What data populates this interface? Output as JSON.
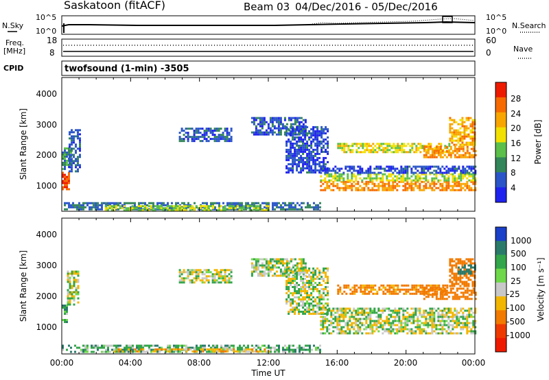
{
  "header": {
    "station": "Saskatoon (fitACF)",
    "beam": "Beam 03",
    "date_range": "04/Dec/2016 - 05/Dec/2016"
  },
  "status_panel": {
    "nsky_label": "N.Sky",
    "nsky_ticks": [
      "10^5",
      "10^0"
    ],
    "nsearch_label": "N.Search",
    "nsearch_ticks": [
      "10^5",
      "10^0"
    ],
    "freq_label_line1": "Freq.",
    "freq_label_line2": "[MHz]",
    "freq_ticks": [
      "18",
      "8"
    ],
    "nave_label": "Nave",
    "nave_ticks": [
      "60",
      "0"
    ],
    "cpid_label": "CPID",
    "cpid_value": "twofsound (1-min) -3505"
  },
  "power_colorbar": {
    "label": "Power [dB]",
    "ticks": [
      "4",
      "8",
      "12",
      "16",
      "20",
      "24",
      "28"
    ],
    "colors": [
      "#1f22ee",
      "#2a55c8",
      "#33855a",
      "#5bbf4a",
      "#f2e000",
      "#f8a500",
      "#f66a00",
      "#ee1a00"
    ]
  },
  "velocity_colorbar": {
    "label": "Velocity [m s⁻¹]",
    "ticks": [
      "1000",
      "500",
      "100",
      "25",
      "-25",
      "-100",
      "-500",
      "-1000"
    ],
    "colors": [
      "#1a3fc8",
      "#2a7a6a",
      "#33a54a",
      "#6fd84a",
      "#c8c8c8",
      "#f2b600",
      "#f27a00",
      "#ee3a00",
      "#ee1a00"
    ]
  },
  "axes": {
    "y_label": "Slant Range [km]",
    "y_ticks": [
      "1000",
      "2000",
      "3000",
      "4000"
    ],
    "x_label": "Time UT",
    "x_ticks": [
      "00:00",
      "04:00",
      "08:00",
      "12:00",
      "16:00",
      "20:00",
      "00:00"
    ]
  },
  "chart_data": [
    {
      "type": "heatmap",
      "variable": "Power",
      "unit": "dB",
      "x_unit": "hours UT",
      "xlim": [
        0,
        24
      ],
      "ylim": [
        200,
        4600
      ],
      "clim": [
        0,
        30
      ],
      "regions": [
        {
          "x": [
            0.0,
            0.4
          ],
          "y": [
            900,
            1500
          ],
          "value": 28
        },
        {
          "x": [
            0.0,
            0.5
          ],
          "y": [
            1500,
            2300
          ],
          "value": 10
        },
        {
          "x": [
            0.4,
            1.0
          ],
          "y": [
            1500,
            2900
          ],
          "value": 6
        },
        {
          "x": [
            0.0,
            15.0
          ],
          "y": [
            250,
            500
          ],
          "value": 8
        },
        {
          "x": [
            2.5,
            12.0
          ],
          "y": [
            250,
            400
          ],
          "value": 16
        },
        {
          "x": [
            6.8,
            9.8
          ],
          "y": [
            2500,
            2950
          ],
          "value": 6
        },
        {
          "x": [
            11.0,
            14.2
          ],
          "y": [
            2700,
            3300
          ],
          "value": 6
        },
        {
          "x": [
            13.0,
            15.5
          ],
          "y": [
            1500,
            3000
          ],
          "value": 5
        },
        {
          "x": [
            15.0,
            24.0
          ],
          "y": [
            900,
            1200
          ],
          "value": 24
        },
        {
          "x": [
            15.0,
            24.0
          ],
          "y": [
            1200,
            1450
          ],
          "value": 16
        },
        {
          "x": [
            15.0,
            24.0
          ],
          "y": [
            1450,
            1700
          ],
          "value": 5
        },
        {
          "x": [
            16.0,
            22.5
          ],
          "y": [
            2150,
            2450
          ],
          "value": 18
        },
        {
          "x": [
            21.0,
            24.0
          ],
          "y": [
            2000,
            2350
          ],
          "value": 24
        },
        {
          "x": [
            22.5,
            24.0
          ],
          "y": [
            2400,
            3300
          ],
          "value": 22
        }
      ]
    },
    {
      "type": "heatmap",
      "variable": "Velocity",
      "unit": "m s-1",
      "x_unit": "hours UT",
      "xlim": [
        0,
        24
      ],
      "ylim": [
        200,
        4600
      ],
      "clim": [
        -1000,
        1000
      ],
      "regions": [
        {
          "x": [
            0.0,
            0.3
          ],
          "y": [
            1200,
            1800
          ],
          "value": 60
        },
        {
          "x": [
            0.3,
            1.0
          ],
          "y": [
            1800,
            2900
          ],
          "value": 0
        },
        {
          "x": [
            0.0,
            15.0
          ],
          "y": [
            250,
            500
          ],
          "value": 60
        },
        {
          "x": [
            3.0,
            12.0
          ],
          "y": [
            250,
            380
          ],
          "value": -60
        },
        {
          "x": [
            6.8,
            9.8
          ],
          "y": [
            2500,
            2950
          ],
          "value": 0
        },
        {
          "x": [
            11.0,
            14.2
          ],
          "y": [
            2700,
            3300
          ],
          "value": 0
        },
        {
          "x": [
            13.0,
            15.5
          ],
          "y": [
            1500,
            3000
          ],
          "value": 0
        },
        {
          "x": [
            15.0,
            24.0
          ],
          "y": [
            850,
            1700
          ],
          "value": 0
        },
        {
          "x": [
            16.0,
            22.5
          ],
          "y": [
            2150,
            2450
          ],
          "value": -150
        },
        {
          "x": [
            21.0,
            24.0
          ],
          "y": [
            2000,
            2350
          ],
          "value": -300
        },
        {
          "x": [
            22.5,
            24.0
          ],
          "y": [
            2400,
            3300
          ],
          "value": -200
        },
        {
          "x": [
            23.0,
            24.0
          ],
          "y": [
            2800,
            3100
          ],
          "value": 200
        }
      ]
    }
  ]
}
